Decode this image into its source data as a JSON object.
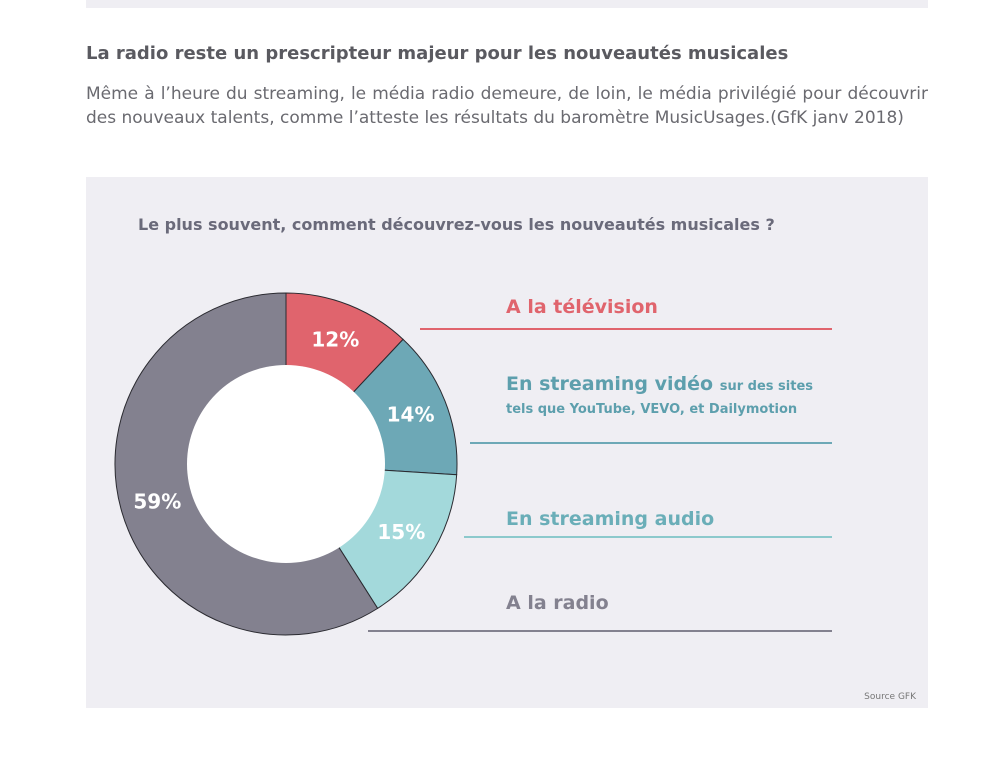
{
  "heading": "La radio reste un prescripteur majeur pour les nouveautés musicales",
  "intro": "Même à l’heure du streaming, le média radio demeure, de loin, le média privilégié pour découvrir des nouveaux talents, comme l’atteste les résultats du baromètre MusicUsages.(GfK janv 2018)",
  "chart_data": {
    "type": "pie",
    "title": "Le plus souvent, comment découvrez-vous les nouveautés musicales ?",
    "slices": [
      {
        "label": "A la télévision",
        "value": 12,
        "value_label": "12%",
        "color": "#e0646d"
      },
      {
        "label": "En streaming vidéo",
        "sub_label_1": "sur des sites",
        "sub_label_2": "tels que YouTube, VEVO, et Dailymotion",
        "value": 14,
        "value_label": "14%",
        "color": "#6da8b6"
      },
      {
        "label": "En streaming audio",
        "value": 15,
        "value_label": "15%",
        "color": "#a3d9db"
      },
      {
        "label": "A la radio",
        "value": 59,
        "value_label": "59%",
        "color": "#83818f"
      }
    ],
    "donut": true,
    "source": "Source GFK"
  }
}
